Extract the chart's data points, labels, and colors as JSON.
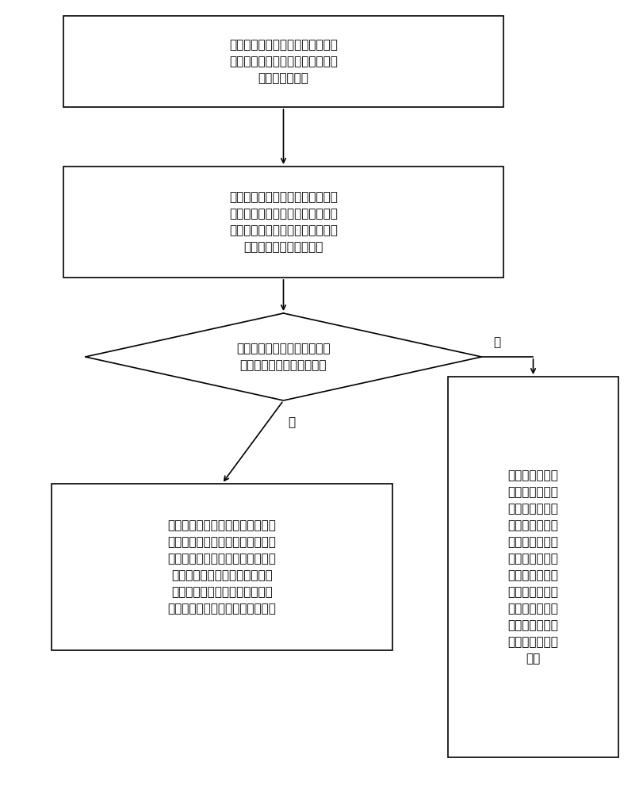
{
  "bg_color": "#ffffff",
  "box_edge_color": "#000000",
  "box_face_color": "#ffffff",
  "arrow_color": "#000000",
  "text_color": "#000000",
  "font_size": 11,
  "box1_text": "在控制界面上进行选择操作，跳转\n至参数设置副界面，进行温度参数\n和压力参数设置",
  "box2_text": "使温度检测元件实时检测发热管加\n热的空气温度，使压力检测元件实\n时检测发热管内的压力，并将温度\n和压力传输至控制界面内",
  "diamond_text": "控制界面接收到的温度信号或\n压力信号是否出现干扰现象",
  "box3_text": "先对温度信号或压力信号进行滤波\n处理，再计算已滤波处理的温度信\n号与预设温度参数之差或已滤波处\n理的压力信号与预设压力参数之\n差，根据差值进行比例和积分运\n算，将运算结果作为控制信号输出",
  "box4_text": "计算温度检测元\n件反馈的温度信\n号与预设温度参\n数之差或压力检\n测元件反馈的压\n力信号与预设压\n力参数之差，再\n根据差值进行比\n例、积分和微分\n运算，将运算结\n果作为控制信号\n输出",
  "yes_label": "是",
  "no_label": "否"
}
